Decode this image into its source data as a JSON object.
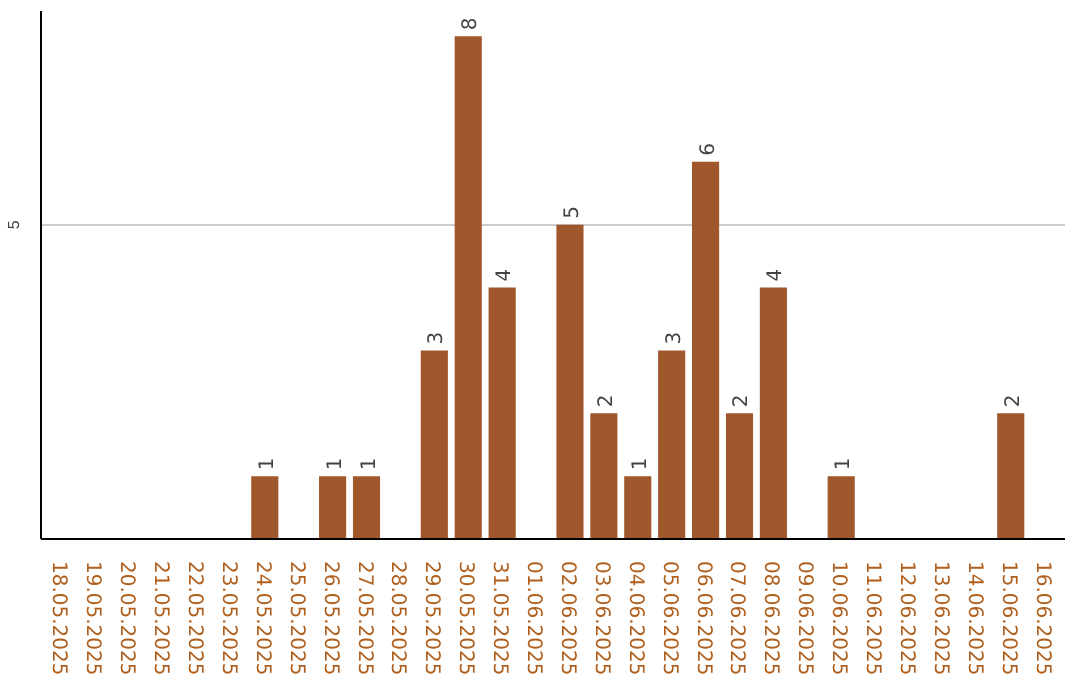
{
  "chart_data": {
    "type": "bar",
    "categories": [
      "18.05.2025",
      "19.05.2025",
      "20.05.2025",
      "21.05.2025",
      "22.05.2025",
      "23.05.2025",
      "24.05.2025",
      "25.05.2025",
      "26.05.2025",
      "27.05.2025",
      "28.05.2025",
      "29.05.2025",
      "30.05.2025",
      "31.05.2025",
      "01.06.2025",
      "02.06.2025",
      "03.06.2025",
      "04.06.2025",
      "05.06.2025",
      "06.06.2025",
      "07.06.2025",
      "08.06.2025",
      "09.06.2025",
      "10.06.2025",
      "11.06.2025",
      "12.06.2025",
      "13.06.2025",
      "14.06.2025",
      "15.06.2025",
      "16.06.2025"
    ],
    "values": [
      0,
      0,
      0,
      0,
      0,
      0,
      1,
      0,
      1,
      1,
      0,
      3,
      8,
      4,
      0,
      5,
      2,
      1,
      3,
      6,
      2,
      4,
      0,
      1,
      0,
      0,
      0,
      0,
      2,
      0
    ],
    "value_labels": [
      null,
      null,
      null,
      null,
      null,
      null,
      "1",
      null,
      "1",
      "1",
      null,
      "3",
      "8",
      "4",
      null,
      "5",
      "2",
      "1",
      "3",
      "6",
      "2",
      "4",
      null,
      "1",
      null,
      null,
      null,
      null,
      "2",
      null
    ],
    "color": "#a0572b",
    "ylim": [
      0,
      8.4
    ],
    "yticks": [
      5
    ],
    "grid": "y"
  }
}
